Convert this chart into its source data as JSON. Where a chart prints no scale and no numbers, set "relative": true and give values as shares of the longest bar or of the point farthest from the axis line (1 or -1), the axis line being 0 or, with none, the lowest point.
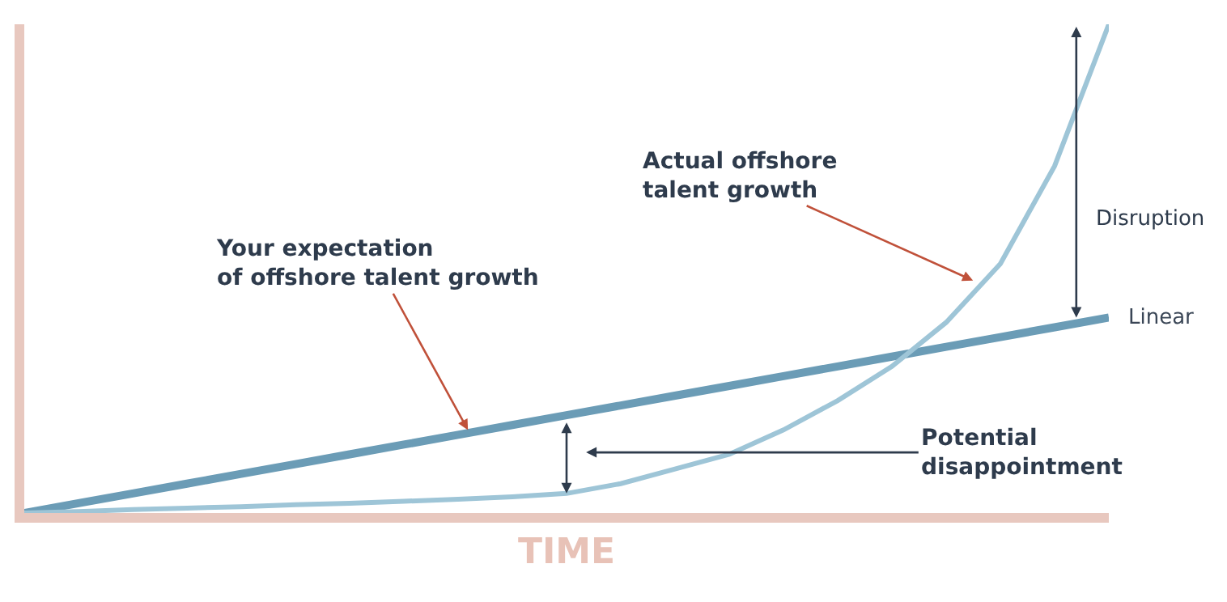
{
  "chart_data": {
    "type": "line",
    "relative": true,
    "xlabel": "TIME",
    "categories": [
      null,
      null,
      null,
      null,
      null,
      null,
      null,
      null,
      null,
      null,
      null,
      null,
      null,
      null,
      null,
      null,
      null,
      null,
      null,
      null,
      null
    ],
    "series": [
      {
        "name": "Linear",
        "color": "#6b9cb6",
        "values": [
          0,
          0.02,
          0.04,
          0.06,
          0.08,
          0.1,
          0.12,
          0.14,
          0.16,
          0.18,
          0.2,
          0.22,
          0.24,
          0.26,
          0.28,
          0.3,
          0.32,
          0.34,
          0.36,
          0.38,
          0.4
        ]
      },
      {
        "color": "#9ec5d7",
        "values": [
          0,
          0.003,
          0.007,
          0.01,
          0.013,
          0.017,
          0.02,
          0.024,
          0.028,
          0.033,
          0.04,
          0.06,
          0.09,
          0.12,
          0.17,
          0.23,
          0.3,
          0.39,
          0.51,
          0.71,
          1.0
        ]
      }
    ],
    "annotations": [
      "Your expectation\nof offshore talent growth",
      "Actual offshore\ntalent growth",
      "Potential\ndisappointment",
      "Disruption"
    ],
    "legend": false,
    "marker": "none",
    "line_style": "solid"
  }
}
